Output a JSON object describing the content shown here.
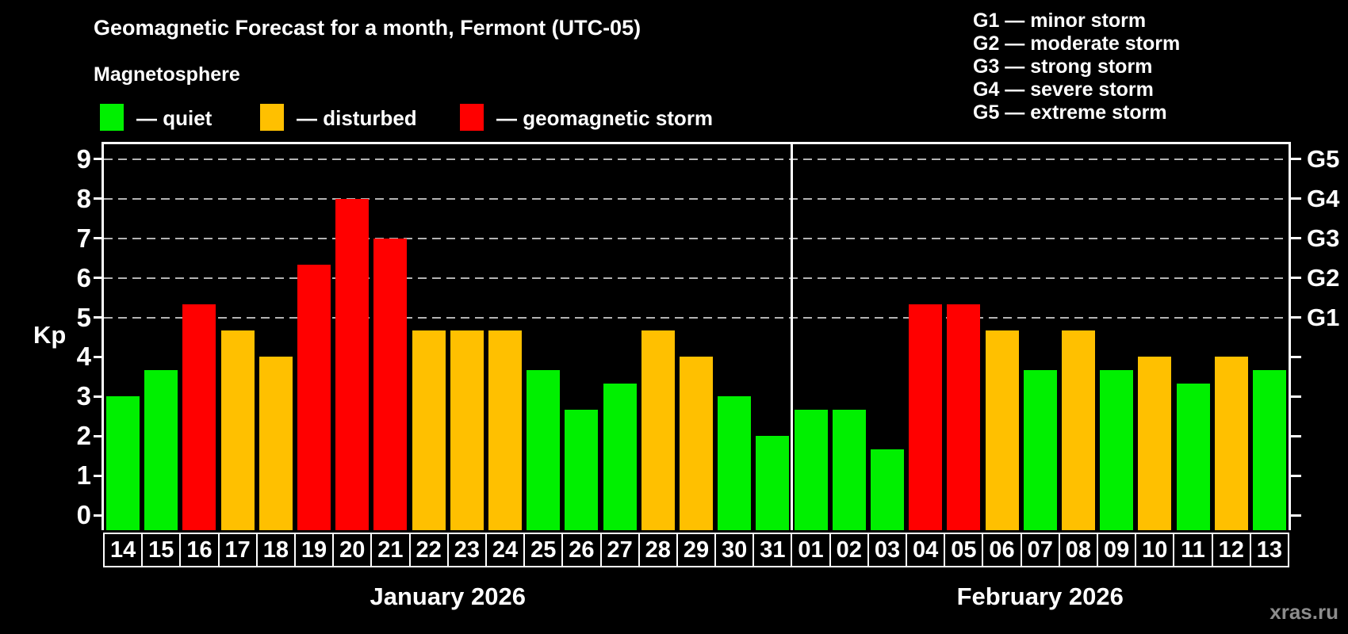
{
  "title": "Geomagnetic Forecast for a month, Fermont (UTC-05)",
  "subtitle": "Magnetosphere",
  "legend": {
    "items": [
      {
        "key": "quiet",
        "label": "— quiet"
      },
      {
        "key": "disturbed",
        "label": "— disturbed"
      },
      {
        "key": "storm",
        "label": "— geomagnetic storm"
      }
    ]
  },
  "g_legend": {
    "items": [
      "G1 — minor storm",
      "G2 — moderate storm",
      "G3 — strong storm",
      "G4 — severe storm",
      "G5 — extreme storm"
    ]
  },
  "watermark": "xras.ru",
  "chart_data": {
    "type": "bar",
    "title": "Geomagnetic Forecast for a month, Fermont (UTC-05)",
    "xlabel": "",
    "ylabel": "Kp",
    "ylim": [
      0,
      9
    ],
    "yticks": [
      0,
      1,
      2,
      3,
      4,
      5,
      6,
      7,
      8,
      9
    ],
    "gridlines": [
      5,
      6,
      7,
      8,
      9
    ],
    "grid": "dashed horizontal lines at Kp 5-9 only",
    "legend_position": "top-left",
    "right_axis": {
      "5": "G1",
      "6": "G2",
      "7": "G3",
      "8": "G4",
      "9": "G5"
    },
    "status_colors": {
      "quiet": "#00f000",
      "disturbed": "#ffc000",
      "storm": "#ff0000"
    },
    "series": [
      {
        "month": "January 2026",
        "days": [
          "14",
          "15",
          "16",
          "17",
          "18",
          "19",
          "20",
          "21",
          "22",
          "23",
          "24",
          "25",
          "26",
          "27",
          "28",
          "29",
          "30",
          "31"
        ],
        "kp": [
          3.0,
          3.67,
          5.33,
          4.67,
          4.0,
          6.33,
          8.0,
          7.0,
          4.67,
          4.67,
          4.67,
          3.67,
          2.67,
          3.33,
          4.67,
          4.0,
          3.0,
          2.0
        ],
        "status": [
          "quiet",
          "quiet",
          "storm",
          "disturbed",
          "disturbed",
          "storm",
          "storm",
          "storm",
          "disturbed",
          "disturbed",
          "disturbed",
          "quiet",
          "quiet",
          "quiet",
          "disturbed",
          "disturbed",
          "quiet",
          "quiet"
        ]
      },
      {
        "month": "February 2026",
        "days": [
          "01",
          "02",
          "03",
          "04",
          "05",
          "06",
          "07",
          "08",
          "09",
          "10",
          "11",
          "12",
          "13"
        ],
        "kp": [
          2.67,
          2.67,
          1.67,
          5.33,
          5.33,
          4.67,
          3.67,
          4.67,
          3.67,
          4.0,
          3.33,
          4.0,
          3.67
        ],
        "status": [
          "quiet",
          "quiet",
          "quiet",
          "storm",
          "storm",
          "disturbed",
          "quiet",
          "disturbed",
          "quiet",
          "disturbed",
          "quiet",
          "disturbed",
          "quiet"
        ]
      }
    ]
  }
}
